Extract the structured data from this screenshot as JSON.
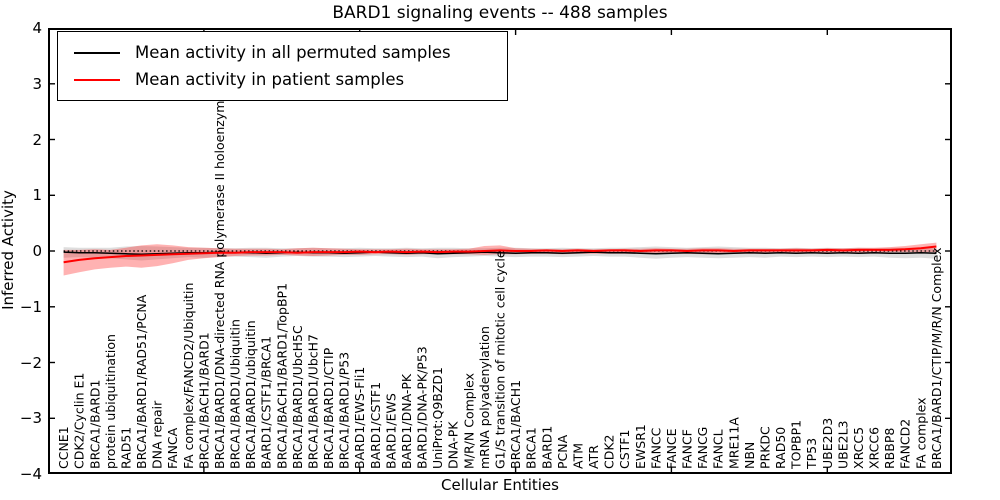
{
  "title": "BARD1 signaling events -- 488 samples",
  "axes": {
    "x_label": "Cellular Entities",
    "y_label": "Inferred Activity",
    "y_ticks": [
      "4",
      "3",
      "2",
      "1",
      "0",
      "−1",
      "−2",
      "−3",
      "−4"
    ]
  },
  "legend": {
    "entries": [
      {
        "label": "Mean activity in all permuted samples",
        "color": "#000000"
      },
      {
        "label": "Mean activity in patient samples",
        "color": "#ff0000"
      }
    ]
  },
  "chart_data": {
    "type": "line",
    "title": "BARD1 signaling events -- 488 samples",
    "xlabel": "Cellular Entities",
    "ylabel": "Inferred Activity",
    "ylim": [
      -4,
      4
    ],
    "grid": false,
    "legend_position": "upper left",
    "zero_line_dotted": true,
    "x_major_tick_interval": 10,
    "categories": [
      "CCNE1",
      "CDK2/Cyclin E1",
      "BRCA1/BARD1",
      "protein ubiquitination",
      "RAD51",
      "BRCA1/BARD1/RAD51/PCNA",
      "DNA repair",
      "FANCA",
      "FA complex/FANCD2/Ubiquitin",
      "BRCA1/BACH1/BARD1",
      "BRCA1/BARD1/DNA-directed RNA polymerase II holoenzyme",
      "BRCA1/BARD1/Ubiquitin",
      "BRCA1/BARD1/ubiquitin",
      "BARD1/CSTF1/BRCA1",
      "BRCA1/BACH1/BARD1/TopBP1",
      "BRCA1/BARD1/UbcH5C",
      "BRCA1/BARD1/UbcH7",
      "BRCA1/BARD1/CTIP",
      "BRCA1/BARD1/P53",
      "BARD1/EWS-Fli1",
      "BARD1/CSTF1",
      "BARD1/EWS",
      "BARD1/DNA-PK",
      "BARD1/DNA-PK/P53",
      "UniProt:Q9BZD1",
      "DNA-PK",
      "M/R/N Complex",
      "mRNA polyadenylation",
      "G1/S transition of mitotic cell cycle",
      "BRCA1/BACH1",
      "BRCA1",
      "BARD1",
      "PCNA",
      "ATM",
      "ATR",
      "CDK2",
      "CSTF1",
      "EWSR1",
      "FANCC",
      "FANCE",
      "FANCF",
      "FANCG",
      "FANCL",
      "MRE11A",
      "NBN",
      "PRKDC",
      "RAD50",
      "TOPBP1",
      "TP53",
      "UBE2D3",
      "UBE2L3",
      "XRCC5",
      "XRCC6",
      "RBBP8",
      "FANCD2",
      "FA complex",
      "BRCA1/BARD1/CTIP/M/R/N Complex"
    ],
    "series": [
      {
        "id": "permuted",
        "name": "Mean activity in all permuted samples",
        "color": "#000000",
        "line_width": 1.5,
        "band_opacity": 0.13,
        "values": [
          -0.02,
          -0.03,
          -0.03,
          -0.04,
          -0.05,
          -0.06,
          -0.05,
          -0.04,
          -0.03,
          -0.03,
          -0.02,
          -0.03,
          -0.03,
          -0.04,
          -0.03,
          -0.02,
          -0.03,
          -0.03,
          -0.04,
          -0.03,
          -0.02,
          -0.03,
          -0.04,
          -0.03,
          -0.05,
          -0.04,
          -0.03,
          -0.02,
          -0.03,
          -0.04,
          -0.03,
          -0.03,
          -0.04,
          -0.03,
          -0.02,
          -0.03,
          -0.03,
          -0.04,
          -0.05,
          -0.04,
          -0.03,
          -0.04,
          -0.05,
          -0.04,
          -0.03,
          -0.04,
          -0.03,
          -0.04,
          -0.03,
          -0.04,
          -0.03,
          -0.04,
          -0.03,
          -0.04,
          -0.04,
          -0.03,
          -0.04
        ],
        "band_upper": [
          0.07,
          0.06,
          0.06,
          0.06,
          0.08,
          0.09,
          0.08,
          0.07,
          0.06,
          0.06,
          0.05,
          0.05,
          0.06,
          0.06,
          0.05,
          0.05,
          0.06,
          0.05,
          0.05,
          0.06,
          0.05,
          0.05,
          0.06,
          0.05,
          0.06,
          0.06,
          0.05,
          0.05,
          0.06,
          0.06,
          0.05,
          0.05,
          0.06,
          0.05,
          0.05,
          0.06,
          0.06,
          0.07,
          0.08,
          0.07,
          0.06,
          0.07,
          0.08,
          0.07,
          0.06,
          0.06,
          0.05,
          0.06,
          0.05,
          0.06,
          0.05,
          0.06,
          0.05,
          0.06,
          0.06,
          0.06,
          0.05
        ],
        "band_lower": [
          -0.12,
          -0.11,
          -0.12,
          -0.13,
          -0.15,
          -0.17,
          -0.15,
          -0.13,
          -0.11,
          -0.12,
          -0.1,
          -0.1,
          -0.11,
          -0.12,
          -0.1,
          -0.09,
          -0.1,
          -0.1,
          -0.11,
          -0.1,
          -0.09,
          -0.1,
          -0.11,
          -0.1,
          -0.13,
          -0.11,
          -0.1,
          -0.09,
          -0.1,
          -0.11,
          -0.1,
          -0.1,
          -0.11,
          -0.1,
          -0.09,
          -0.1,
          -0.1,
          -0.12,
          -0.14,
          -0.12,
          -0.11,
          -0.12,
          -0.13,
          -0.12,
          -0.11,
          -0.12,
          -0.1,
          -0.11,
          -0.1,
          -0.11,
          -0.1,
          -0.11,
          -0.1,
          -0.12,
          -0.13,
          -0.12,
          -0.14
        ]
      },
      {
        "id": "patient",
        "name": "Mean activity in patient samples",
        "color": "#ff0000",
        "line_width": 2,
        "band_opacity": 0.3,
        "values": [
          -0.2,
          -0.16,
          -0.13,
          -0.11,
          -0.09,
          -0.08,
          -0.07,
          -0.06,
          -0.05,
          -0.04,
          -0.03,
          -0.03,
          -0.02,
          -0.02,
          -0.02,
          -0.03,
          -0.02,
          -0.02,
          -0.02,
          -0.01,
          -0.02,
          -0.01,
          -0.02,
          -0.01,
          -0.02,
          -0.01,
          -0.01,
          0.0,
          0.01,
          0.0,
          0.0,
          0.01,
          0.0,
          0.01,
          0.0,
          0.01,
          0.01,
          0.0,
          0.01,
          0.01,
          0.0,
          0.01,
          0.01,
          0.0,
          0.01,
          0.01,
          0.01,
          0.01,
          0.01,
          0.02,
          0.01,
          0.02,
          0.02,
          0.02,
          0.03,
          0.05,
          0.08
        ],
        "band_upper": [
          0.02,
          0.02,
          0.03,
          0.02,
          0.06,
          0.1,
          0.12,
          0.1,
          0.07,
          0.06,
          0.05,
          0.04,
          0.04,
          0.04,
          0.03,
          0.05,
          0.06,
          0.05,
          0.04,
          0.03,
          0.03,
          0.03,
          0.04,
          0.03,
          0.03,
          0.03,
          0.04,
          0.09,
          0.1,
          0.05,
          0.04,
          0.03,
          0.03,
          0.04,
          0.03,
          0.03,
          0.04,
          0.04,
          0.05,
          0.04,
          0.04,
          0.05,
          0.05,
          0.04,
          0.04,
          0.04,
          0.04,
          0.05,
          0.04,
          0.05,
          0.05,
          0.06,
          0.06,
          0.07,
          0.09,
          0.12,
          0.15
        ],
        "band_lower": [
          -0.44,
          -0.38,
          -0.33,
          -0.3,
          -0.28,
          -0.3,
          -0.27,
          -0.22,
          -0.16,
          -0.13,
          -0.11,
          -0.09,
          -0.08,
          -0.08,
          -0.07,
          -0.08,
          -0.09,
          -0.08,
          -0.07,
          -0.07,
          -0.06,
          -0.06,
          -0.07,
          -0.06,
          -0.06,
          -0.06,
          -0.06,
          -0.07,
          -0.06,
          -0.06,
          -0.05,
          -0.05,
          -0.06,
          -0.05,
          -0.05,
          -0.05,
          -0.05,
          -0.05,
          -0.06,
          -0.05,
          -0.05,
          -0.06,
          -0.06,
          -0.05,
          -0.05,
          -0.05,
          -0.04,
          -0.05,
          -0.04,
          -0.04,
          -0.04,
          -0.03,
          -0.03,
          -0.02,
          -0.02,
          -0.02,
          -0.02
        ]
      }
    ]
  }
}
